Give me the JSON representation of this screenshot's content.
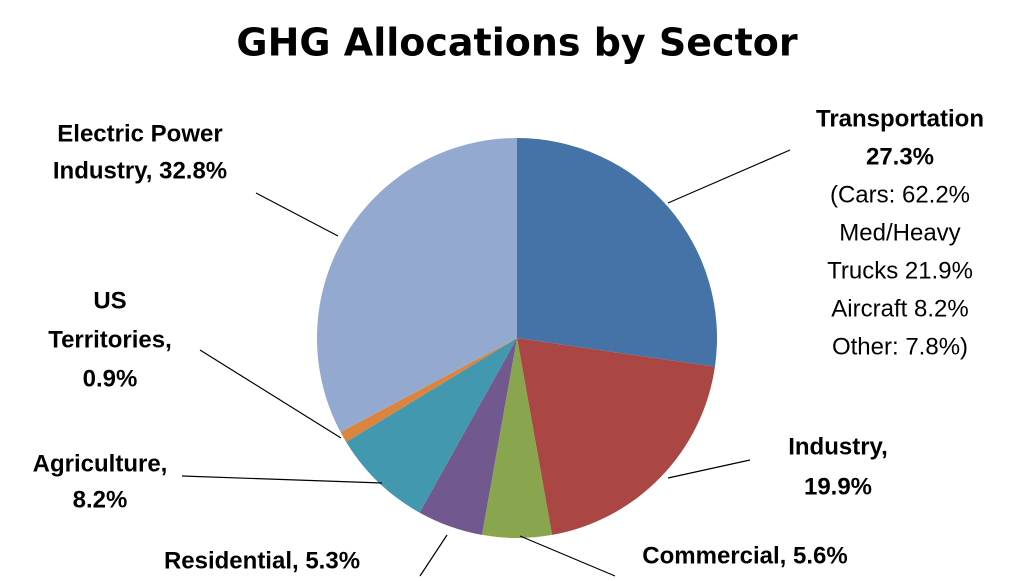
{
  "chart_data": {
    "type": "pie",
    "title": "GHG Allocations by Sector",
    "values": [
      27.3,
      19.9,
      5.6,
      5.3,
      8.2,
      0.9,
      32.8
    ],
    "value_labels": [
      [
        "Transportation",
        "27.3%",
        "(Cars: 62.2%",
        "Med/Heavy",
        "Trucks 21.9%",
        "Aircraft 8.2%",
        "Other: 7.8%)"
      ],
      [
        "Industry,",
        "19.9%"
      ],
      [
        "Commercial, 5.6%"
      ],
      [
        "Residential, 5.3%"
      ],
      [
        "Agriculture,",
        "8.2%"
      ],
      [
        "US",
        "Territories,",
        "0.9%"
      ],
      [
        "Electric Power",
        "Industry, 32.8%"
      ]
    ],
    "colors": [
      "#4572a7",
      "#aa4643",
      "#89a54e",
      "#71588f",
      "#4198af",
      "#db843d",
      "#93a9cf"
    ]
  }
}
